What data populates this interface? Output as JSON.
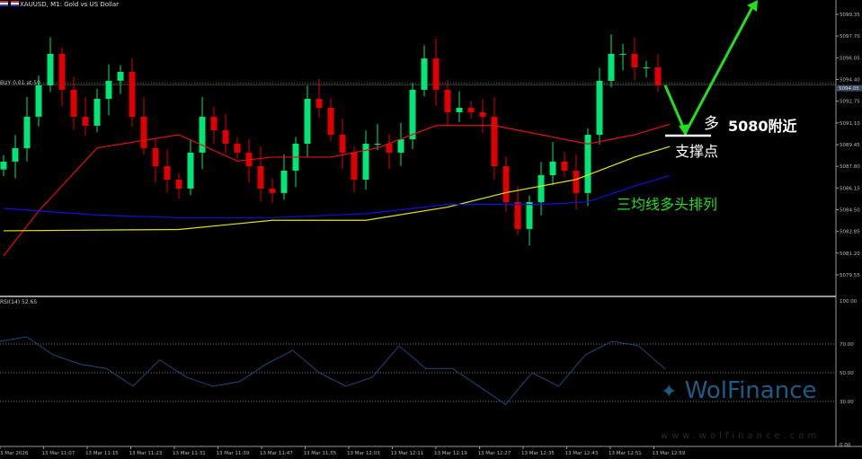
{
  "header": {
    "symbol_title": "XAUUSD, M1:  Gold vs US Dollar",
    "trade_line_label": "BUY 0.01 at 50",
    "rsi_label": "RSI(14) 52.65"
  },
  "annotations": {
    "direction": "多",
    "level": "5080附近",
    "support": "支撑点",
    "ma_note": "三均线多头排列"
  },
  "watermark": {
    "brand": "WolFinance",
    "url": "www.wolfinance.com"
  },
  "colors": {
    "bull": "#00e676",
    "bear": "#e00000",
    "ma_fast": "#e01010",
    "ma_mid": "#e6e600",
    "ma_slow": "#1010e0",
    "rsi": "#1e4a78",
    "arrow": "#22dd22",
    "axis": "#aaaaaa"
  },
  "chart_data": {
    "type": "candlestick",
    "price_axis": {
      "range": [
        5078.7,
        5100.45
      ],
      "ticks": [
        "5099.35",
        "5097.70",
        "5096.05",
        "5094.40",
        "5092.75",
        "5091.10",
        "5089.45",
        "5087.80",
        "5086.15",
        "5084.50",
        "5082.85",
        "5081.20",
        "5079.55"
      ],
      "current_price": "5094.05"
    },
    "time_axis": {
      "ticks": [
        "13 Mar 2026",
        "13 Mar 11:07",
        "13 Mar 11:15",
        "13 Mar 11:23",
        "13 Mar 11:31",
        "13 Mar 11:39",
        "13 Mar 11:47",
        "13 Mar 11:55",
        "13 Mar 12:03",
        "13 Mar 12:11",
        "13 Mar 12:19",
        "13 Mar 12:27",
        "13 Mar 12:35",
        "13 Mar 12:43",
        "13 Mar 12:51",
        "13 Mar 12:59"
      ]
    },
    "closes": [
      5088.16,
      5089.18,
      5091.57,
      5093.96,
      5096.35,
      5093.62,
      5091.57,
      5090.89,
      5092.93,
      5094.3,
      5094.98,
      5091.57,
      5089.18,
      5087.81,
      5086.79,
      5086.11,
      5088.84,
      5091.57,
      5090.54,
      5089.52,
      5088.84,
      5087.81,
      5086.11,
      5085.77,
      5087.47,
      5089.52,
      5092.93,
      5092.25,
      5090.2,
      5088.84,
      5086.79,
      5089.52,
      5089.52,
      5088.84,
      5089.86,
      5093.62,
      5096.0,
      5093.62,
      5091.91,
      5092.25,
      5091.91,
      5091.57,
      5087.81,
      5085.08,
      5083.04,
      5085.08,
      5087.13,
      5088.16,
      5087.47,
      5085.77,
      5090.2,
      5094.3,
      5096.35,
      5096.35,
      5095.32,
      5095.32,
      5093.96
    ],
    "ma_series": [
      {
        "key": "ma_fast",
        "points": [
          [
            0,
            5081.0
          ],
          [
            3,
            5084.4
          ],
          [
            8,
            5089.2
          ],
          [
            15,
            5090.2
          ],
          [
            20,
            5088.2
          ],
          [
            23,
            5088.5
          ],
          [
            28,
            5088.5
          ],
          [
            32,
            5089.2
          ],
          [
            37,
            5090.9
          ],
          [
            42,
            5090.9
          ],
          [
            46,
            5090.2
          ],
          [
            50,
            5089.5
          ],
          [
            54,
            5090.2
          ],
          [
            57,
            5091.0
          ]
        ]
      },
      {
        "key": "ma_mid",
        "points": [
          [
            0,
            5082.9
          ],
          [
            15,
            5083.0
          ],
          [
            23,
            5083.7
          ],
          [
            31,
            5083.7
          ],
          [
            38,
            5084.7
          ],
          [
            43,
            5085.8
          ],
          [
            49,
            5086.8
          ],
          [
            54,
            5088.5
          ],
          [
            57,
            5089.3
          ]
        ]
      },
      {
        "key": "ma_slow",
        "points": [
          [
            0,
            5084.6
          ],
          [
            8,
            5084.1
          ],
          [
            15,
            5083.9
          ],
          [
            23,
            5083.9
          ],
          [
            31,
            5084.2
          ],
          [
            38,
            5084.9
          ],
          [
            46,
            5084.9
          ],
          [
            50,
            5085.1
          ],
          [
            54,
            5086.3
          ],
          [
            57,
            5087.1
          ]
        ]
      }
    ],
    "rsi": {
      "range": [
        0,
        100
      ],
      "levels": [
        70,
        50,
        30
      ],
      "ticks": [
        "100.00",
        "70.00",
        "50.00",
        "30.00",
        "0.00"
      ],
      "values": [
        71.9,
        75,
        62.5,
        56,
        53,
        40.6,
        59,
        47,
        40.6,
        43.8,
        56,
        65.6,
        50,
        40.6,
        47,
        68.8,
        53,
        53,
        40.6,
        28,
        50,
        40.6,
        62.5,
        71.9,
        68.8,
        52.65
      ]
    }
  }
}
